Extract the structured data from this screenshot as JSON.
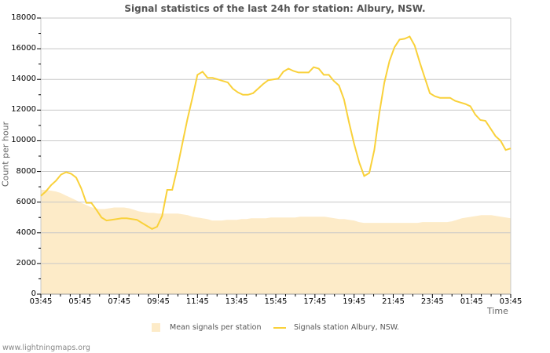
{
  "chart_data": {
    "type": "line",
    "title": "Signal statistics of the last 24h for station: Albury, NSW.",
    "xlabel": "Time",
    "ylabel": "Count per hour",
    "ylim": [
      0,
      18000
    ],
    "yticks": [
      0,
      2000,
      4000,
      6000,
      8000,
      10000,
      12000,
      14000,
      16000,
      18000
    ],
    "xticks": [
      "03:45",
      "05:45",
      "07:45",
      "09:45",
      "11:45",
      "13:45",
      "15:45",
      "17:45",
      "19:45",
      "21:45",
      "23:45",
      "01:45",
      "03:45"
    ],
    "grid": true,
    "legend_position": "bottom",
    "series": [
      {
        "name": "Mean signals per station",
        "type": "area",
        "color": "#fdebc8",
        "values": [
          6800,
          6800,
          6750,
          6700,
          6600,
          6450,
          6300,
          6150,
          6000,
          5850,
          5700,
          5600,
          5550,
          5550,
          5600,
          5650,
          5650,
          5650,
          5600,
          5500,
          5400,
          5350,
          5300,
          5300,
          5250,
          5250,
          5250,
          5250,
          5250,
          5200,
          5150,
          5050,
          5000,
          4950,
          4900,
          4800,
          4800,
          4800,
          4850,
          4850,
          4850,
          4900,
          4900,
          4950,
          4950,
          4950,
          4950,
          5000,
          5000,
          5000,
          5000,
          5000,
          5000,
          5050,
          5050,
          5050,
          5050,
          5050,
          5050,
          5000,
          4950,
          4900,
          4900,
          4850,
          4800,
          4700,
          4650,
          4650,
          4650,
          4650,
          4650,
          4650,
          4650,
          4650,
          4650,
          4650,
          4650,
          4650,
          4700,
          4700,
          4700,
          4700,
          4700,
          4700,
          4750,
          4850,
          4950,
          5000,
          5050,
          5100,
          5150,
          5150,
          5150,
          5100,
          5050,
          5000,
          4950
        ]
      },
      {
        "name": "Signals station Albury, NSW.",
        "type": "line",
        "color": "#f9d13a",
        "values": [
          6400,
          6700,
          7100,
          7400,
          7800,
          7950,
          7850,
          7600,
          6900,
          5950,
          5950,
          5500,
          5000,
          4800,
          4850,
          4900,
          4950,
          4950,
          4900,
          4850,
          4650,
          4450,
          4250,
          4400,
          5100,
          6800,
          6800,
          8200,
          9800,
          11400,
          12800,
          14300,
          14500,
          14100,
          14100,
          14000,
          13900,
          13800,
          13400,
          13150,
          13000,
          13000,
          13100,
          13400,
          13700,
          13950,
          14000,
          14050,
          14500,
          14700,
          14550,
          14450,
          14450,
          14450,
          14800,
          14700,
          14300,
          14300,
          13900,
          13600,
          12700,
          11200,
          9800,
          8600,
          7700,
          7900,
          9400,
          11800,
          13800,
          15200,
          16100,
          16600,
          16650,
          16800,
          16200,
          15100,
          14100,
          13100,
          12900,
          12800,
          12800,
          12800,
          12600,
          12500,
          12400,
          12250,
          11700,
          11350,
          11300,
          10800,
          10300,
          10000,
          9400,
          9500
        ]
      }
    ]
  },
  "footer": "www.lightningmaps.org"
}
